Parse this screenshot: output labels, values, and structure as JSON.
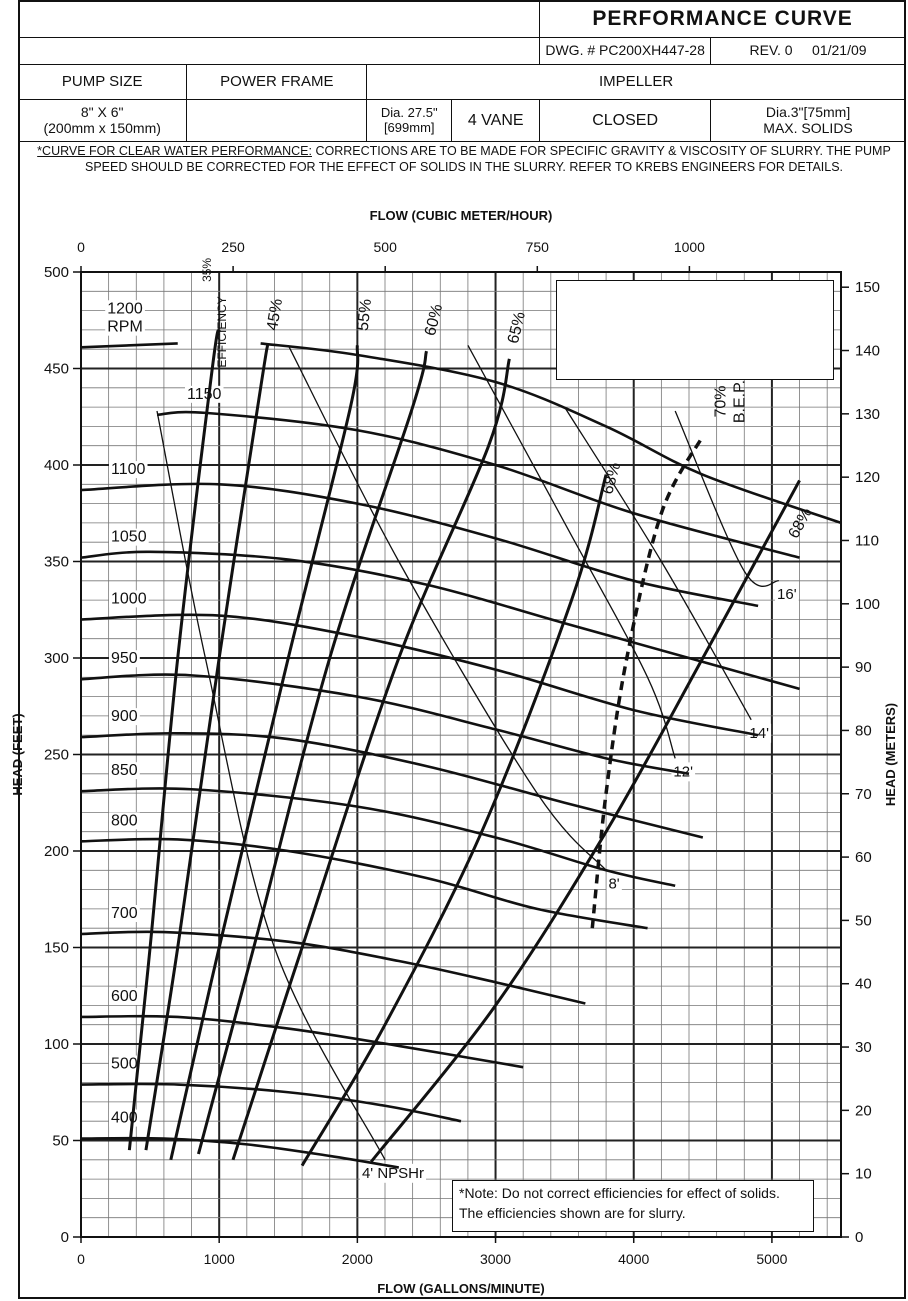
{
  "header": {
    "title": "PERFORMANCE CURVE",
    "dwg": "DWG. # PC200XH447-28",
    "rev": "REV. 0",
    "date": "01/21/09",
    "pump_size_label": "PUMP SIZE",
    "power_frame_label": "POWER FRAME",
    "impeller_label": "IMPELLER",
    "pump_size_line1": "8\" X 6\"",
    "pump_size_line2": "(200mm x 150mm)",
    "dia_line1": "Dia. 27.5\"",
    "dia_line2": "[699mm]",
    "vanes": "4 VANE",
    "type": "CLOSED",
    "solids_line1": "Dia.3\"[75mm]",
    "solids_line2": "MAX. SOLIDS"
  },
  "notes": {
    "top_underlined": "*CURVE FOR CLEAR WATER PERFORMANCE:",
    "top_rest": " CORRECTIONS ARE TO BE MADE FOR SPECIFIC GRAVITY & VISCOSITY OF SLURRY. THE PUMP SPEED SHOULD BE CORRECTED FOR THE EFFECT OF SOLIDS IN THE SLURRY.  REFER TO KREBS ENGINEERS FOR DETAILS.",
    "bottom": "*Note: Do not correct efficiencies for effect of solids.  The efficiencies shown are for slurry."
  },
  "chart_data": {
    "type": "line",
    "title": "",
    "xlabel": "FLOW (GALLONS/MINUTE)",
    "ylabel": "HEAD (FEET)",
    "x2label": "FLOW (CUBIC METER/HOUR)",
    "y2label": "HEAD (METERS)",
    "xlim": [
      0,
      5500
    ],
    "ylim": [
      0,
      500
    ],
    "x_ticks": [
      0,
      1000,
      2000,
      3000,
      4000,
      5000
    ],
    "y_ticks": [
      0,
      50,
      100,
      150,
      200,
      250,
      300,
      350,
      400,
      450,
      500
    ],
    "x2_ticks": [
      0,
      250,
      500,
      750,
      1000
    ],
    "y2_ticks": [
      0,
      10,
      20,
      30,
      40,
      50,
      60,
      70,
      80,
      90,
      100,
      110,
      120,
      130,
      140,
      150
    ],
    "grid": true,
    "speed_curves": [
      {
        "label": "1200\nRPM",
        "points": [
          [
            0,
            461
          ],
          [
            700,
            463
          ]
        ]
      },
      {
        "label": "",
        "points": [
          [
            1300,
            463
          ],
          [
            2000,
            457
          ],
          [
            3000,
            443
          ],
          [
            3800,
            420
          ],
          [
            4500,
            395
          ],
          [
            5500,
            370
          ]
        ]
      },
      {
        "label": "1150",
        "points": [
          [
            550,
            426
          ],
          [
            900,
            427
          ],
          [
            2000,
            418
          ],
          [
            3000,
            400
          ],
          [
            4000,
            375
          ],
          [
            5200,
            352
          ]
        ]
      },
      {
        "label": "1100",
        "points": [
          [
            0,
            387
          ],
          [
            1000,
            390
          ],
          [
            2000,
            380
          ],
          [
            3000,
            362
          ],
          [
            4000,
            340
          ],
          [
            4900,
            327
          ]
        ]
      },
      {
        "label": "1050",
        "points": [
          [
            0,
            352
          ],
          [
            500,
            355
          ],
          [
            1500,
            351
          ],
          [
            2500,
            338
          ],
          [
            3500,
            318
          ],
          [
            4500,
            298
          ],
          [
            5200,
            284
          ]
        ]
      },
      {
        "label": "1000",
        "points": [
          [
            0,
            320
          ],
          [
            1000,
            322
          ],
          [
            2000,
            311
          ],
          [
            3000,
            294
          ],
          [
            4000,
            273
          ],
          [
            4900,
            260
          ]
        ]
      },
      {
        "label": "950",
        "points": [
          [
            0,
            289
          ],
          [
            800,
            291
          ],
          [
            2000,
            280
          ],
          [
            3000,
            263
          ],
          [
            3800,
            248
          ],
          [
            4400,
            240
          ]
        ]
      },
      {
        "label": "900",
        "points": [
          [
            0,
            259
          ],
          [
            700,
            261
          ],
          [
            1500,
            258
          ],
          [
            2500,
            244
          ],
          [
            3500,
            225
          ],
          [
            4500,
            207
          ]
        ]
      },
      {
        "label": "850",
        "points": [
          [
            0,
            231
          ],
          [
            800,
            232
          ],
          [
            2000,
            223
          ],
          [
            3000,
            207
          ],
          [
            3800,
            190
          ],
          [
            4300,
            182
          ]
        ]
      },
      {
        "label": "800",
        "points": [
          [
            0,
            205
          ],
          [
            700,
            206
          ],
          [
            1500,
            200
          ],
          [
            2500,
            186
          ],
          [
            3300,
            170
          ],
          [
            4100,
            160
          ]
        ]
      },
      {
        "label": "700",
        "points": [
          [
            0,
            157
          ],
          [
            600,
            158
          ],
          [
            1500,
            153
          ],
          [
            2300,
            143
          ],
          [
            3000,
            132
          ],
          [
            3650,
            121
          ]
        ]
      },
      {
        "label": "600",
        "points": [
          [
            0,
            114
          ],
          [
            700,
            114
          ],
          [
            1500,
            108
          ],
          [
            2300,
            99
          ],
          [
            3200,
            88
          ]
        ]
      },
      {
        "label": "500",
        "points": [
          [
            0,
            79
          ],
          [
            700,
            79
          ],
          [
            1500,
            75
          ],
          [
            2200,
            68
          ],
          [
            2750,
            60
          ]
        ]
      },
      {
        "label": "400",
        "points": [
          [
            0,
            51
          ],
          [
            600,
            51
          ],
          [
            1200,
            48
          ],
          [
            1800,
            42
          ],
          [
            2300,
            36
          ]
        ]
      }
    ],
    "efficiency_curves": [
      {
        "label": "35%",
        "points": [
          [
            350,
            45
          ],
          [
            500,
            150
          ],
          [
            700,
            300
          ],
          [
            950,
            450
          ],
          [
            1000,
            470
          ]
        ]
      },
      {
        "label": "45%",
        "points": [
          [
            470,
            45
          ],
          [
            700,
            150
          ],
          [
            1000,
            300
          ],
          [
            1300,
            440
          ],
          [
            1350,
            462
          ]
        ]
      },
      {
        "label": "55%",
        "points": [
          [
            650,
            40
          ],
          [
            1000,
            150
          ],
          [
            1500,
            300
          ],
          [
            1950,
            430
          ],
          [
            2000,
            462
          ]
        ]
      },
      {
        "label": "60%",
        "points": [
          [
            850,
            43
          ],
          [
            1250,
            150
          ],
          [
            1800,
            300
          ],
          [
            2400,
            430
          ],
          [
            2500,
            459
          ]
        ]
      },
      {
        "label": "65%",
        "points": [
          [
            1100,
            40
          ],
          [
            1600,
            150
          ],
          [
            2300,
            300
          ],
          [
            2950,
            410
          ],
          [
            3100,
            455
          ]
        ]
      },
      {
        "label": "68%",
        "points": [
          [
            1600,
            37
          ],
          [
            2200,
            110
          ],
          [
            2900,
            210
          ],
          [
            3550,
            330
          ],
          [
            3800,
            395
          ]
        ]
      },
      {
        "label": "68%",
        "points": [
          [
            2100,
            39
          ],
          [
            3000,
            120
          ],
          [
            3800,
            210
          ],
          [
            4500,
            300
          ],
          [
            5200,
            392
          ]
        ]
      }
    ],
    "npshr_curves": [
      {
        "label": "4' NPSHr",
        "points": [
          [
            550,
            428
          ],
          [
            900,
            300
          ],
          [
            1400,
            150
          ],
          [
            2200,
            40
          ]
        ]
      },
      {
        "label": "8'",
        "points": [
          [
            1500,
            462
          ],
          [
            2300,
            350
          ],
          [
            3300,
            230
          ],
          [
            3800,
            190
          ]
        ]
      },
      {
        "label": "12'",
        "points": [
          [
            2800,
            462
          ],
          [
            3500,
            370
          ],
          [
            4100,
            290
          ],
          [
            4300,
            248
          ]
        ]
      },
      {
        "label": "14'",
        "points": [
          [
            3500,
            430
          ],
          [
            4200,
            350
          ],
          [
            4850,
            268
          ]
        ]
      },
      {
        "label": "16'",
        "points": [
          [
            4300,
            428
          ],
          [
            4800,
            345
          ],
          [
            5050,
            340
          ]
        ]
      }
    ],
    "bep_curve": {
      "label": "70%\nB.E.P.",
      "points": [
        [
          3700,
          160
        ],
        [
          3800,
          230
        ],
        [
          3950,
          300
        ],
        [
          4200,
          375
        ],
        [
          4500,
          415
        ]
      ]
    },
    "annotations": [
      "EFFICIENCY"
    ]
  }
}
